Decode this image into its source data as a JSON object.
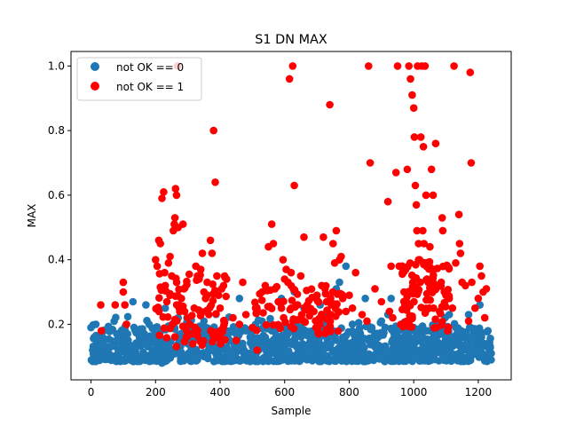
{
  "chart_data": {
    "type": "scatter",
    "title": "S1 DN MAX",
    "xlabel": "Sample",
    "ylabel": "MAX",
    "xlim": [
      -62,
      1302
    ],
    "ylim": [
      0.028,
      1.045
    ],
    "xticks": [
      0,
      200,
      400,
      600,
      800,
      1000,
      1200
    ],
    "yticks": [
      0.2,
      0.4,
      0.6,
      0.8,
      1.0
    ],
    "xtick_labels": [
      "0",
      "200",
      "400",
      "600",
      "800",
      "1000",
      "1200"
    ],
    "ytick_labels": [
      "0.2",
      "0.4",
      "0.6",
      "0.8",
      "1.0"
    ],
    "legend_position": "top-left",
    "grid": false,
    "series": [
      {
        "name": "not OK == 0",
        "color": "#1f77b4",
        "n": 1050,
        "x_range": [
          0,
          1240
        ],
        "y_range": [
          0.075,
          0.38
        ],
        "description": "dense band of points mostly between 0.08 and 0.20 across all samples",
        "points": [
          [
            0,
            0.19
          ],
          [
            5,
            0.12
          ],
          [
            10,
            0.16
          ],
          [
            15,
            0.2
          ],
          [
            20,
            0.1
          ],
          [
            30,
            0.14
          ],
          [
            40,
            0.18
          ],
          [
            50,
            0.11
          ],
          [
            60,
            0.13
          ],
          [
            70,
            0.09
          ],
          [
            80,
            0.17
          ],
          [
            90,
            0.12
          ],
          [
            100,
            0.15
          ],
          [
            110,
            0.2
          ],
          [
            120,
            0.1
          ],
          [
            130,
            0.27
          ],
          [
            140,
            0.13
          ],
          [
            150,
            0.16
          ],
          [
            160,
            0.09
          ],
          [
            170,
            0.26
          ],
          [
            180,
            0.2
          ],
          [
            190,
            0.12
          ],
          [
            200,
            0.14
          ],
          [
            210,
            0.18
          ],
          [
            220,
            0.08
          ],
          [
            230,
            0.25
          ],
          [
            240,
            0.13
          ],
          [
            250,
            0.19
          ],
          [
            260,
            0.11
          ],
          [
            270,
            0.22
          ],
          [
            280,
            0.1
          ],
          [
            290,
            0.16
          ],
          [
            300,
            0.14
          ],
          [
            310,
            0.12
          ],
          [
            320,
            0.18
          ],
          [
            330,
            0.09
          ],
          [
            340,
            0.15
          ],
          [
            350,
            0.21
          ],
          [
            360,
            0.11
          ],
          [
            370,
            0.13
          ],
          [
            380,
            0.17
          ],
          [
            390,
            0.1
          ],
          [
            400,
            0.14
          ],
          [
            410,
            0.19
          ],
          [
            420,
            0.12
          ],
          [
            430,
            0.15
          ],
          [
            440,
            0.09
          ],
          [
            450,
            0.17
          ],
          [
            460,
            0.28
          ],
          [
            470,
            0.13
          ],
          [
            480,
            0.18
          ],
          [
            490,
            0.11
          ],
          [
            500,
            0.14
          ],
          [
            510,
            0.2
          ],
          [
            520,
            0.12
          ],
          [
            530,
            0.21
          ],
          [
            540,
            0.16
          ],
          [
            550,
            0.1
          ],
          [
            560,
            0.18
          ],
          [
            570,
            0.13
          ],
          [
            580,
            0.15
          ],
          [
            590,
            0.28
          ],
          [
            600,
            0.12
          ],
          [
            610,
            0.17
          ],
          [
            620,
            0.14
          ],
          [
            630,
            0.3
          ],
          [
            640,
            0.11
          ],
          [
            650,
            0.19
          ],
          [
            660,
            0.25
          ],
          [
            670,
            0.13
          ],
          [
            680,
            0.17
          ],
          [
            690,
            0.24
          ],
          [
            700,
            0.21
          ],
          [
            710,
            0.26
          ],
          [
            720,
            0.12
          ],
          [
            730,
            0.23
          ],
          [
            740,
            0.14
          ],
          [
            750,
            0.18
          ],
          [
            760,
            0.31
          ],
          [
            770,
            0.33
          ],
          [
            780,
            0.16
          ],
          [
            790,
            0.38
          ],
          [
            800,
            0.12
          ],
          [
            810,
            0.2
          ],
          [
            820,
            0.14
          ],
          [
            830,
            0.17
          ],
          [
            840,
            0.11
          ],
          [
            850,
            0.28
          ],
          [
            860,
            0.15
          ],
          [
            870,
            0.19
          ],
          [
            880,
            0.13
          ],
          [
            890,
            0.16
          ],
          [
            900,
            0.21
          ],
          [
            910,
            0.12
          ],
          [
            920,
            0.23
          ],
          [
            930,
            0.28
          ],
          [
            940,
            0.14
          ],
          [
            950,
            0.18
          ],
          [
            960,
            0.11
          ],
          [
            970,
            0.2
          ],
          [
            980,
            0.15
          ],
          [
            990,
            0.13
          ],
          [
            1000,
            0.19
          ],
          [
            1010,
            0.12
          ],
          [
            1020,
            0.16
          ],
          [
            1030,
            0.14
          ],
          [
            1040,
            0.18
          ],
          [
            1050,
            0.11
          ],
          [
            1060,
            0.15
          ],
          [
            1070,
            0.2
          ],
          [
            1080,
            0.13
          ],
          [
            1090,
            0.17
          ],
          [
            1100,
            0.12
          ],
          [
            1110,
            0.23
          ],
          [
            1120,
            0.14
          ],
          [
            1130,
            0.19
          ],
          [
            1140,
            0.11
          ],
          [
            1150,
            0.16
          ],
          [
            1160,
            0.13
          ],
          [
            1170,
            0.23
          ],
          [
            1180,
            0.15
          ],
          [
            1190,
            0.18
          ],
          [
            1200,
            0.12
          ],
          [
            1205,
            0.26
          ],
          [
            1210,
            0.16
          ],
          [
            1220,
            0.14
          ],
          [
            1230,
            0.18
          ],
          [
            1240,
            0.11
          ]
        ]
      },
      {
        "name": "not OK == 1",
        "color": "#ff0000",
        "n": 420,
        "x_range": [
          25,
          1240
        ],
        "y_range": [
          0.12,
          1.0
        ],
        "description": "sparser points mostly between 0.15 and 0.50, with outliers up to 1.0, concentrated around samples 200-400 and 900-1200",
        "points": [
          [
            30,
            0.26
          ],
          [
            32,
            0.18
          ],
          [
            75,
            0.26
          ],
          [
            100,
            0.33
          ],
          [
            100,
            0.3
          ],
          [
            105,
            0.26
          ],
          [
            110,
            0.2
          ],
          [
            200,
            0.4
          ],
          [
            205,
            0.38
          ],
          [
            210,
            0.46
          ],
          [
            215,
            0.45
          ],
          [
            220,
            0.59
          ],
          [
            225,
            0.61
          ],
          [
            228,
            0.36
          ],
          [
            230,
            0.32
          ],
          [
            235,
            0.27
          ],
          [
            240,
            0.39
          ],
          [
            245,
            0.41
          ],
          [
            250,
            0.35
          ],
          [
            255,
            0.49
          ],
          [
            258,
            0.51
          ],
          [
            260,
            0.53
          ],
          [
            262,
            0.62
          ],
          [
            265,
            0.6
          ],
          [
            268,
            1.0
          ],
          [
            270,
            0.5
          ],
          [
            272,
            0.26
          ],
          [
            275,
            0.24
          ],
          [
            280,
            0.28
          ],
          [
            285,
            0.51
          ],
          [
            288,
            0.31
          ],
          [
            290,
            0.24
          ],
          [
            295,
            0.16
          ],
          [
            300,
            0.22
          ],
          [
            305,
            0.2
          ],
          [
            310,
            0.17
          ],
          [
            315,
            0.14
          ],
          [
            320,
            0.25
          ],
          [
            325,
            0.38
          ],
          [
            330,
            0.35
          ],
          [
            335,
            0.34
          ],
          [
            340,
            0.37
          ],
          [
            345,
            0.42
          ],
          [
            350,
            0.3
          ],
          [
            355,
            0.28
          ],
          [
            360,
            0.33
          ],
          [
            365,
            0.23
          ],
          [
            370,
            0.46
          ],
          [
            375,
            0.42
          ],
          [
            380,
            0.8
          ],
          [
            385,
            0.64
          ],
          [
            390,
            0.35
          ],
          [
            395,
            0.29
          ],
          [
            400,
            0.25
          ],
          [
            405,
            0.31
          ],
          [
            410,
            0.19
          ],
          [
            420,
            0.34
          ],
          [
            440,
            0.22
          ],
          [
            450,
            0.15
          ],
          [
            460,
            0.2
          ],
          [
            470,
            0.33
          ],
          [
            480,
            0.23
          ],
          [
            500,
            0.19
          ],
          [
            510,
            0.25
          ],
          [
            515,
            0.12
          ],
          [
            530,
            0.3
          ],
          [
            540,
            0.32
          ],
          [
            550,
            0.44
          ],
          [
            560,
            0.51
          ],
          [
            565,
            0.45
          ],
          [
            570,
            0.31
          ],
          [
            580,
            0.27
          ],
          [
            590,
            0.25
          ],
          [
            595,
            0.4
          ],
          [
            600,
            0.34
          ],
          [
            605,
            0.37
          ],
          [
            610,
            0.33
          ],
          [
            615,
            0.96
          ],
          [
            620,
            0.36
          ],
          [
            625,
            1.0
          ],
          [
            630,
            0.63
          ],
          [
            640,
            0.26
          ],
          [
            650,
            0.35
          ],
          [
            660,
            0.47
          ],
          [
            670,
            0.26
          ],
          [
            690,
            0.24
          ],
          [
            700,
            0.29
          ],
          [
            710,
            0.2
          ],
          [
            715,
            0.32
          ],
          [
            720,
            0.47
          ],
          [
            725,
            0.31
          ],
          [
            730,
            0.27
          ],
          [
            735,
            0.22
          ],
          [
            740,
            0.88
          ],
          [
            745,
            0.26
          ],
          [
            750,
            0.45
          ],
          [
            755,
            0.39
          ],
          [
            760,
            0.49
          ],
          [
            770,
            0.4
          ],
          [
            775,
            0.41
          ],
          [
            780,
            0.28
          ],
          [
            790,
            0.24
          ],
          [
            800,
            0.29
          ],
          [
            810,
            0.25
          ],
          [
            820,
            0.36
          ],
          [
            840,
            0.23
          ],
          [
            855,
            0.21
          ],
          [
            860,
            1.0
          ],
          [
            865,
            0.7
          ],
          [
            880,
            0.31
          ],
          [
            900,
            0.27
          ],
          [
            920,
            0.58
          ],
          [
            925,
            0.24
          ],
          [
            930,
            0.38
          ],
          [
            935,
            0.22
          ],
          [
            945,
            0.67
          ],
          [
            950,
            1.0
          ],
          [
            955,
            0.38
          ],
          [
            960,
            0.2
          ],
          [
            965,
            0.36
          ],
          [
            970,
            0.3
          ],
          [
            975,
            0.37
          ],
          [
            980,
            0.68
          ],
          [
            985,
            1.0
          ],
          [
            990,
            0.96
          ],
          [
            995,
            0.91
          ],
          [
            1000,
            0.87
          ],
          [
            1002,
            0.78
          ],
          [
            1005,
            0.63
          ],
          [
            1008,
            0.57
          ],
          [
            1010,
            0.49
          ],
          [
            1012,
            1.0
          ],
          [
            1015,
            0.45
          ],
          [
            1018,
            0.4
          ],
          [
            1020,
            0.33
          ],
          [
            1022,
            0.78
          ],
          [
            1025,
            1.0
          ],
          [
            1028,
            0.49
          ],
          [
            1030,
            0.75
          ],
          [
            1032,
            0.45
          ],
          [
            1035,
            1.0
          ],
          [
            1038,
            0.6
          ],
          [
            1040,
            0.38
          ],
          [
            1045,
            0.33
          ],
          [
            1048,
            0.25
          ],
          [
            1050,
            0.44
          ],
          [
            1055,
            0.68
          ],
          [
            1060,
            0.6
          ],
          [
            1062,
            0.37
          ],
          [
            1065,
            0.31
          ],
          [
            1068,
            0.76
          ],
          [
            1070,
            0.19
          ],
          [
            1075,
            0.32
          ],
          [
            1080,
            0.24
          ],
          [
            1085,
            0.33
          ],
          [
            1088,
            0.53
          ],
          [
            1090,
            0.49
          ],
          [
            1095,
            0.3
          ],
          [
            1100,
            0.29
          ],
          [
            1105,
            0.18
          ],
          [
            1110,
            0.28
          ],
          [
            1120,
            0.25
          ],
          [
            1125,
            1.0
          ],
          [
            1130,
            0.39
          ],
          [
            1140,
            0.54
          ],
          [
            1142,
            0.45
          ],
          [
            1145,
            0.42
          ],
          [
            1150,
            0.33
          ],
          [
            1160,
            0.32
          ],
          [
            1170,
            0.21
          ],
          [
            1175,
            0.98
          ],
          [
            1178,
            0.7
          ],
          [
            1180,
            0.33
          ],
          [
            1190,
            0.25
          ],
          [
            1200,
            0.28
          ],
          [
            1205,
            0.38
          ],
          [
            1210,
            0.35
          ],
          [
            1215,
            0.3
          ],
          [
            1220,
            0.22
          ],
          [
            1225,
            0.31
          ]
        ]
      }
    ]
  }
}
